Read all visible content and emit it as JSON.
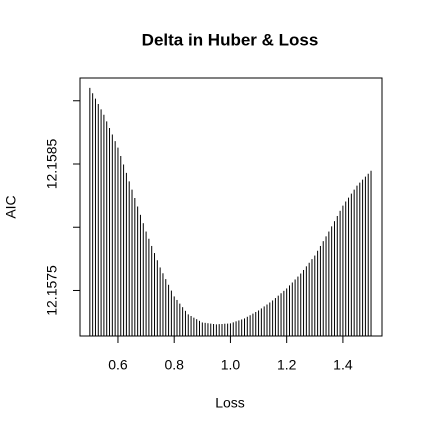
{
  "chart_data": {
    "type": "spike",
    "title": "Delta in Huber & Loss",
    "x_label": "Loss",
    "y_label": "AIC",
    "x": [
      0.5,
      0.51,
      0.52,
      0.53,
      0.54,
      0.55,
      0.56,
      0.57,
      0.58,
      0.59,
      0.6,
      0.61,
      0.62,
      0.63,
      0.64,
      0.65,
      0.66,
      0.67,
      0.68,
      0.69,
      0.7,
      0.71,
      0.72,
      0.73,
      0.74,
      0.75,
      0.76,
      0.77,
      0.78,
      0.79,
      0.8,
      0.81,
      0.82,
      0.83,
      0.84,
      0.85,
      0.86,
      0.87,
      0.88,
      0.89,
      0.9,
      0.91,
      0.92,
      0.93,
      0.94,
      0.95,
      0.96,
      0.97,
      0.98,
      0.99,
      1.0,
      1.01,
      1.02,
      1.03,
      1.04,
      1.05,
      1.06,
      1.07,
      1.08,
      1.09,
      1.1,
      1.11,
      1.12,
      1.13,
      1.14,
      1.15,
      1.16,
      1.17,
      1.18,
      1.19,
      1.2,
      1.21,
      1.22,
      1.23,
      1.24,
      1.25,
      1.26,
      1.27,
      1.28,
      1.29,
      1.3,
      1.31,
      1.32,
      1.33,
      1.34,
      1.35,
      1.36,
      1.37,
      1.38,
      1.39,
      1.4,
      1.41,
      1.42,
      1.43,
      1.44,
      1.45,
      1.46,
      1.47,
      1.48,
      1.49,
      1.5
    ],
    "values": [
      12.159102,
      12.159059,
      12.159017,
      12.158974,
      12.158932,
      12.158889,
      12.158837,
      12.158785,
      12.158733,
      12.158681,
      12.158629,
      12.158563,
      12.158496,
      12.15843,
      12.158363,
      12.158297,
      12.158231,
      12.158164,
      12.158098,
      12.158032,
      12.157966,
      12.157909,
      12.157852,
      12.157796,
      12.157739,
      12.157682,
      12.157636,
      12.15759,
      12.157545,
      12.157499,
      12.157453,
      12.157425,
      12.157396,
      12.157368,
      12.157339,
      12.157311,
      12.157298,
      12.157285,
      12.157273,
      12.15726,
      12.157247,
      12.157244,
      12.157241,
      12.157238,
      12.157235,
      12.157232,
      12.157234,
      12.157235,
      12.157237,
      12.157238,
      12.15724,
      12.157248,
      12.157256,
      12.157263,
      12.157271,
      12.157279,
      12.157292,
      12.157304,
      12.157317,
      12.15733,
      12.157342,
      12.157358,
      12.157374,
      12.157389,
      12.157405,
      12.157421,
      12.15744,
      12.157459,
      12.157478,
      12.157497,
      12.157516,
      12.15754,
      12.157563,
      12.157587,
      12.15761,
      12.157634,
      12.157662,
      12.157691,
      12.157719,
      12.157748,
      12.157776,
      12.157814,
      12.157852,
      12.15789,
      12.157928,
      12.157966,
      12.158007,
      12.158048,
      12.158089,
      12.15813,
      12.158171,
      12.158203,
      12.158234,
      12.158266,
      12.158297,
      12.158329,
      12.158353,
      12.158376,
      12.1584,
      12.158423,
      12.158447
    ],
    "color": "#000000",
    "xlim": [
      0.465,
      1.539
    ],
    "xticks": [
      0.6,
      0.8,
      {
        "value": 1.0,
        "label": "1.0"
      },
      1.2,
      1.4
    ],
    "ylim": [
      12.15714,
      12.15918
    ],
    "yticks": [
      12.1575,
      12.1585
    ],
    "yminor_ticks": [
      12.158,
      12.159
    ]
  }
}
